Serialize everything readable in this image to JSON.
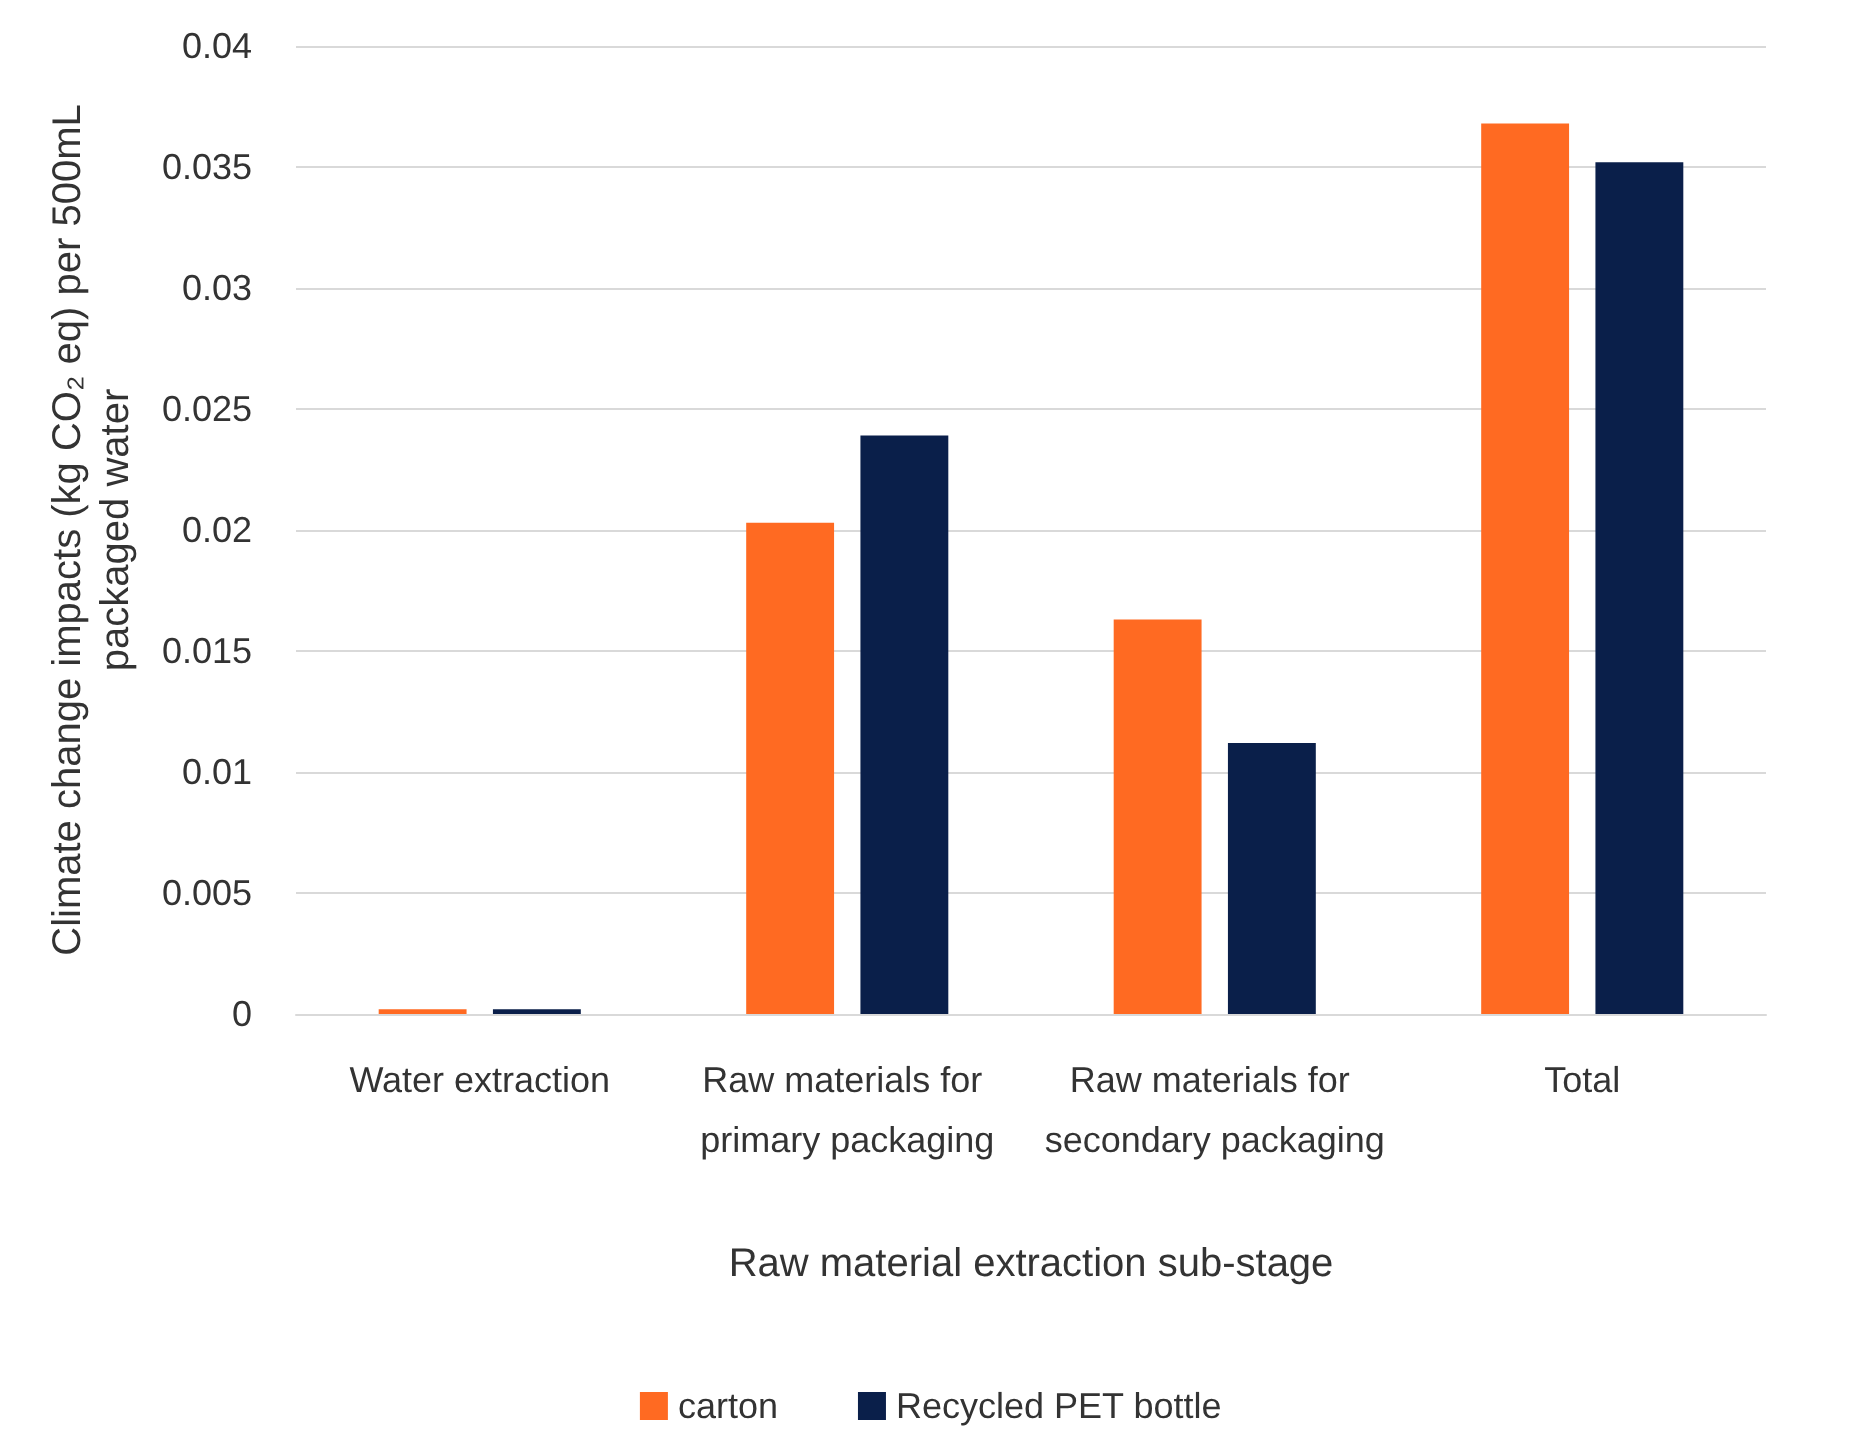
{
  "chart_data": {
    "type": "bar",
    "xlabel": "Raw material extraction sub-stage",
    "ylabel": "Climate change impacts (kg CO₂ eq) per 500mL packaged water",
    "categories": [
      "Water extraction",
      "Raw materials for primary packaging",
      "Raw materials for secondary packaging",
      "Total"
    ],
    "series": [
      {
        "name": "carton",
        "color": "#ff6a22",
        "values": [
          0.0002,
          0.0203,
          0.0163,
          0.0368
        ]
      },
      {
        "name": "Recycled PET bottle",
        "color": "#0a1f4a",
        "values": [
          0.0002,
          0.0239,
          0.0112,
          0.0352
        ]
      }
    ],
    "ylim": [
      0,
      0.04
    ],
    "yticks": [
      0,
      0.005,
      0.01,
      0.015,
      0.02,
      0.025,
      0.03,
      0.035,
      0.04
    ],
    "grid": "y",
    "legend": "bottom"
  }
}
